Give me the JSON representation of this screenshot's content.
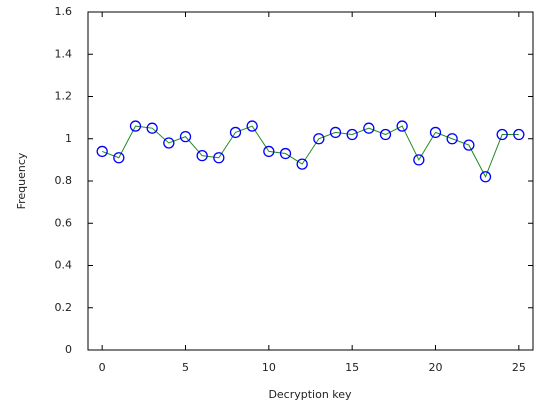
{
  "chart_data": {
    "type": "line",
    "xlabel": "Decryption key",
    "ylabel": "Frequency",
    "x": [
      0,
      1,
      2,
      3,
      4,
      5,
      6,
      7,
      8,
      9,
      10,
      11,
      12,
      13,
      14,
      15,
      16,
      17,
      18,
      19,
      20,
      21,
      22,
      23,
      24,
      25
    ],
    "values": [
      0.94,
      0.91,
      1.06,
      1.05,
      0.98,
      1.01,
      0.92,
      0.91,
      1.03,
      1.06,
      0.94,
      0.93,
      0.88,
      1.0,
      1.03,
      1.02,
      1.05,
      1.02,
      1.06,
      0.9,
      1.03,
      1.0,
      0.97,
      0.82,
      1.02,
      1.02
    ],
    "color": "#228b22",
    "marker_color": "#0000ff",
    "xlim": [
      -0.85,
      25.85
    ],
    "xticks": [
      0,
      5,
      10,
      15,
      20,
      25
    ],
    "ylim": [
      0,
      1.6
    ],
    "yticks": [
      0,
      0.2,
      0.4,
      0.6,
      0.8,
      1,
      1.2,
      1.4,
      1.6
    ],
    "grid": false
  }
}
